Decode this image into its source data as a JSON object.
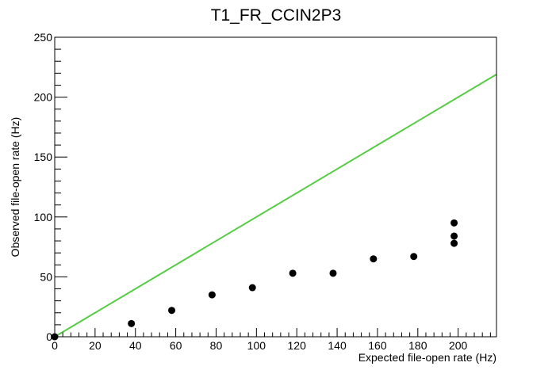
{
  "chart_data": {
    "type": "scatter",
    "title": "T1_FR_CCIN2P3",
    "xlabel": "Expected file-open rate (Hz)",
    "ylabel": "Observed file-open rate (Hz)",
    "xlim": [
      0,
      219
    ],
    "ylim": [
      0,
      250
    ],
    "x_ticks": [
      0,
      20,
      40,
      60,
      80,
      100,
      120,
      140,
      160,
      180,
      200
    ],
    "y_ticks": [
      0,
      50,
      100,
      150,
      200,
      250
    ],
    "grid": false,
    "points": [
      {
        "x": 0,
        "y": 0
      },
      {
        "x": 38,
        "y": 11
      },
      {
        "x": 58,
        "y": 22
      },
      {
        "x": 78,
        "y": 35
      },
      {
        "x": 98,
        "y": 41
      },
      {
        "x": 118,
        "y": 53
      },
      {
        "x": 138,
        "y": 53
      },
      {
        "x": 158,
        "y": 65
      },
      {
        "x": 178,
        "y": 67
      },
      {
        "x": 198,
        "y": 78
      },
      {
        "x": 198,
        "y": 84
      },
      {
        "x": 198,
        "y": 95
      }
    ],
    "reference_line": {
      "x": [
        0,
        219
      ],
      "y": [
        0,
        219
      ],
      "color": "#55cc44"
    },
    "marker_color": "#000000"
  }
}
